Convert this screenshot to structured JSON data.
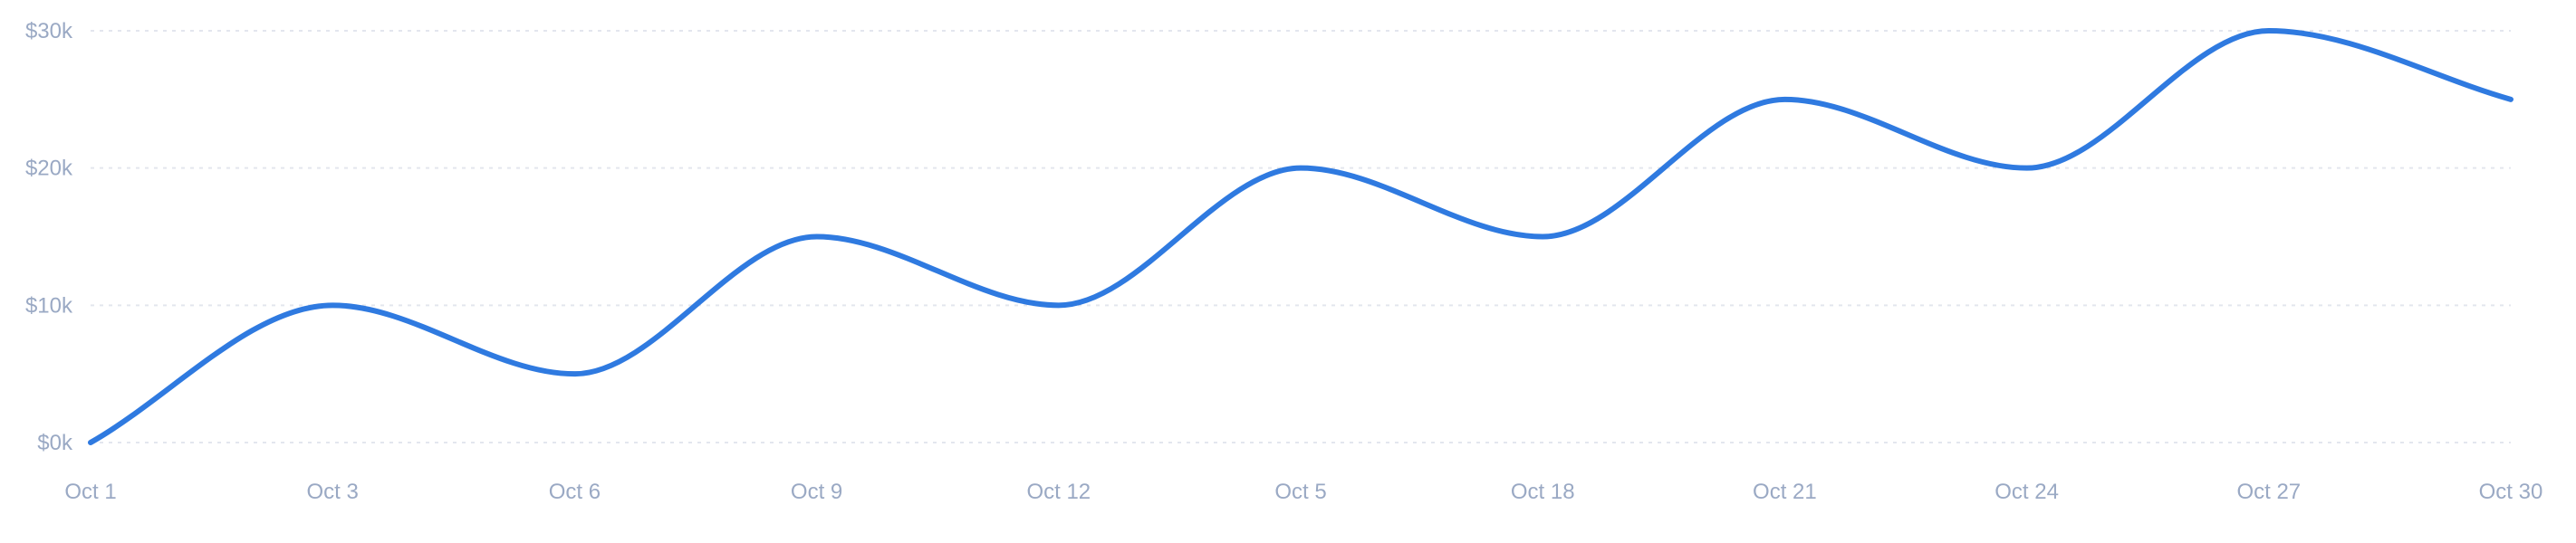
{
  "chart_data": {
    "type": "line",
    "title": "",
    "xlabel": "",
    "ylabel": "",
    "x_tick_labels": [
      "Oct 1",
      "Oct 3",
      "Oct 6",
      "Oct 9",
      "Oct 12",
      "Oct 5",
      "Oct 18",
      "Oct 21",
      "Oct 24",
      "Oct 27",
      "Oct 30"
    ],
    "y_tick_labels": [
      "$0k",
      "$10k",
      "$20k",
      "$30k"
    ],
    "y_ticks": [
      0,
      10000,
      20000,
      30000
    ],
    "ylim": [
      0,
      30000
    ],
    "grid": true,
    "legend": "none",
    "series": [
      {
        "color": "#2f7ae0",
        "values": [
          0,
          10000,
          5000,
          15000,
          10000,
          20000,
          15000,
          25000,
          20000,
          30000,
          25000
        ]
      }
    ]
  }
}
